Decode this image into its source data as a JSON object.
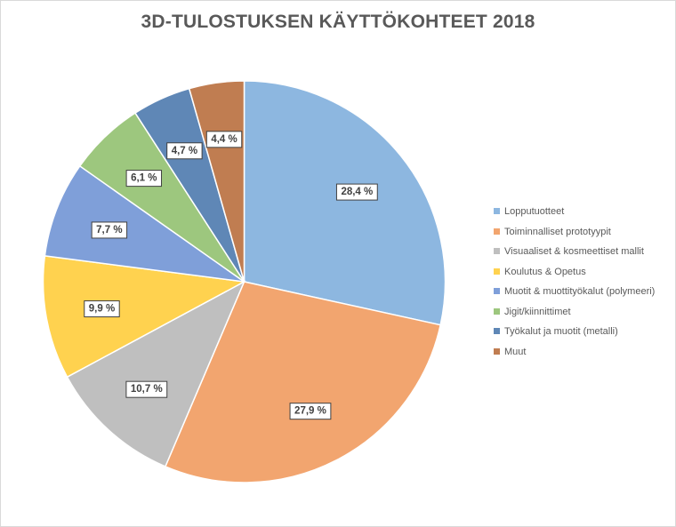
{
  "chart_data": {
    "type": "pie",
    "title": "3D-TULOSTUKSEN KÄYTTÖKOHTEET 2018",
    "legend_position": "right",
    "slices": [
      {
        "name": "Lopputuotteet",
        "value": 28.4,
        "label": "28,4 %",
        "color": "#8db7e0"
      },
      {
        "name": "Toiminnalliset prototyypit",
        "value": 27.9,
        "label": "27,9 %",
        "color": "#f2a56f"
      },
      {
        "name": "Visuaaliset & kosmeettiset mallit",
        "value": 10.7,
        "label": "10,7 %",
        "color": "#bfbfbf"
      },
      {
        "name": "Koulutus & Opetus",
        "value": 9.9,
        "label": "9,9 %",
        "color": "#ffd24f"
      },
      {
        "name": "Muotit & muottityökalut (polymeeri)",
        "value": 7.7,
        "label": "7,7 %",
        "color": "#7f9fd9"
      },
      {
        "name": "Jigit/kiinnittimet",
        "value": 6.1,
        "label": "6,1 %",
        "color": "#9dc77e"
      },
      {
        "name": "Työkalut ja muotit (metalli)",
        "value": 4.7,
        "label": "4,7 %",
        "color": "#5f87b6"
      },
      {
        "name": "Muut",
        "value": 4.4,
        "label": "4,4 %",
        "color": "#c07d51"
      }
    ]
  }
}
